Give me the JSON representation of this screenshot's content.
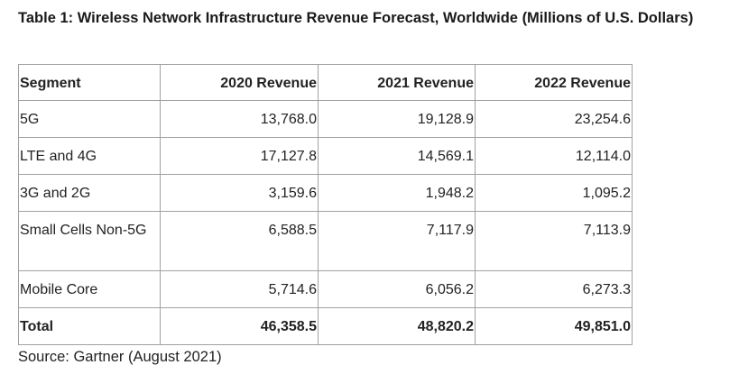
{
  "title": "Table 1: Wireless Network Infrastructure Revenue Forecast, Worldwide (Millions of U.S. Dollars)",
  "columns": [
    "Segment",
    "2020 Revenue",
    "2021 Revenue",
    "2022 Revenue"
  ],
  "rows": [
    [
      "5G",
      "13,768.0",
      "19,128.9",
      "23,254.6"
    ],
    [
      "LTE and 4G",
      "17,127.8",
      "14,569.1",
      "12,114.0"
    ],
    [
      "3G and 2G",
      "3,159.6",
      "1,948.2",
      "1,095.2"
    ],
    [
      "Small Cells Non-5G",
      "6,588.5",
      "7,117.9",
      "7,113.9"
    ],
    [
      "Mobile Core",
      "5,714.6",
      "6,056.2",
      "6,273.3"
    ],
    [
      "Total",
      "46,358.5",
      "48,820.2",
      "49,851.0"
    ]
  ],
  "source": "Source: Gartner (August 2021)"
}
